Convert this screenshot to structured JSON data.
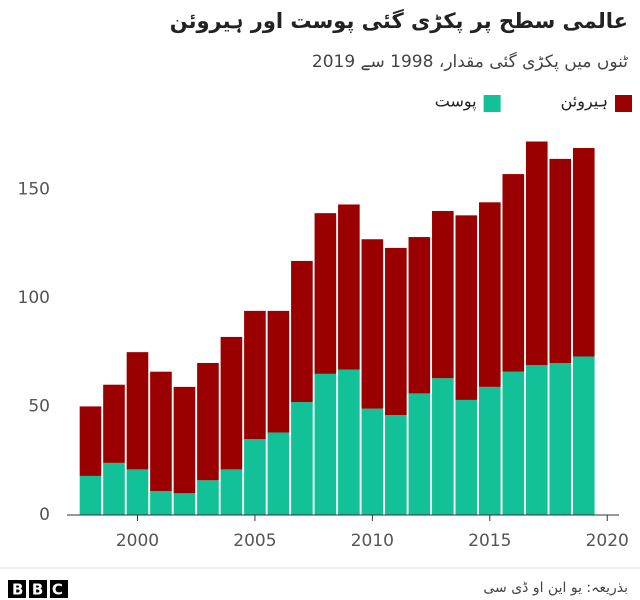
{
  "chart_data": {
    "type": "stacked-bar",
    "title": "عالمی سطح پر پکڑی گئی پوست اور ہیروئن",
    "subtitle": "ٹنوں میں پکڑی گئی مقدار، 1998 سے 2019",
    "source": "بذریعہ: یو این او ڈی سی",
    "logo": "BBC",
    "x": [
      1998,
      1999,
      2000,
      2001,
      2002,
      2003,
      2004,
      2005,
      2006,
      2007,
      2008,
      2009,
      2010,
      2011,
      2012,
      2013,
      2014,
      2015,
      2016,
      2017,
      2018,
      2019
    ],
    "series": [
      {
        "name": "پوست",
        "color": "#12c197",
        "values": [
          18,
          24,
          21,
          11,
          10,
          16,
          21,
          35,
          38,
          52,
          65,
          67,
          49,
          46,
          56,
          63,
          53,
          59,
          66,
          69,
          70,
          73
        ]
      },
      {
        "name": "ہیروئن",
        "color": "#9b0000",
        "values": [
          32,
          36,
          54,
          55,
          49,
          54,
          61,
          59,
          56,
          65,
          74,
          76,
          78,
          77,
          72,
          77,
          85,
          85,
          91,
          103,
          94,
          96
        ]
      }
    ],
    "xlim": [
      1997,
      2020.5
    ],
    "xticks": [
      2000,
      2005,
      2010,
      2015,
      2020
    ],
    "ylim": [
      0,
      175
    ],
    "yticks": [
      0,
      50,
      100,
      150
    ]
  }
}
